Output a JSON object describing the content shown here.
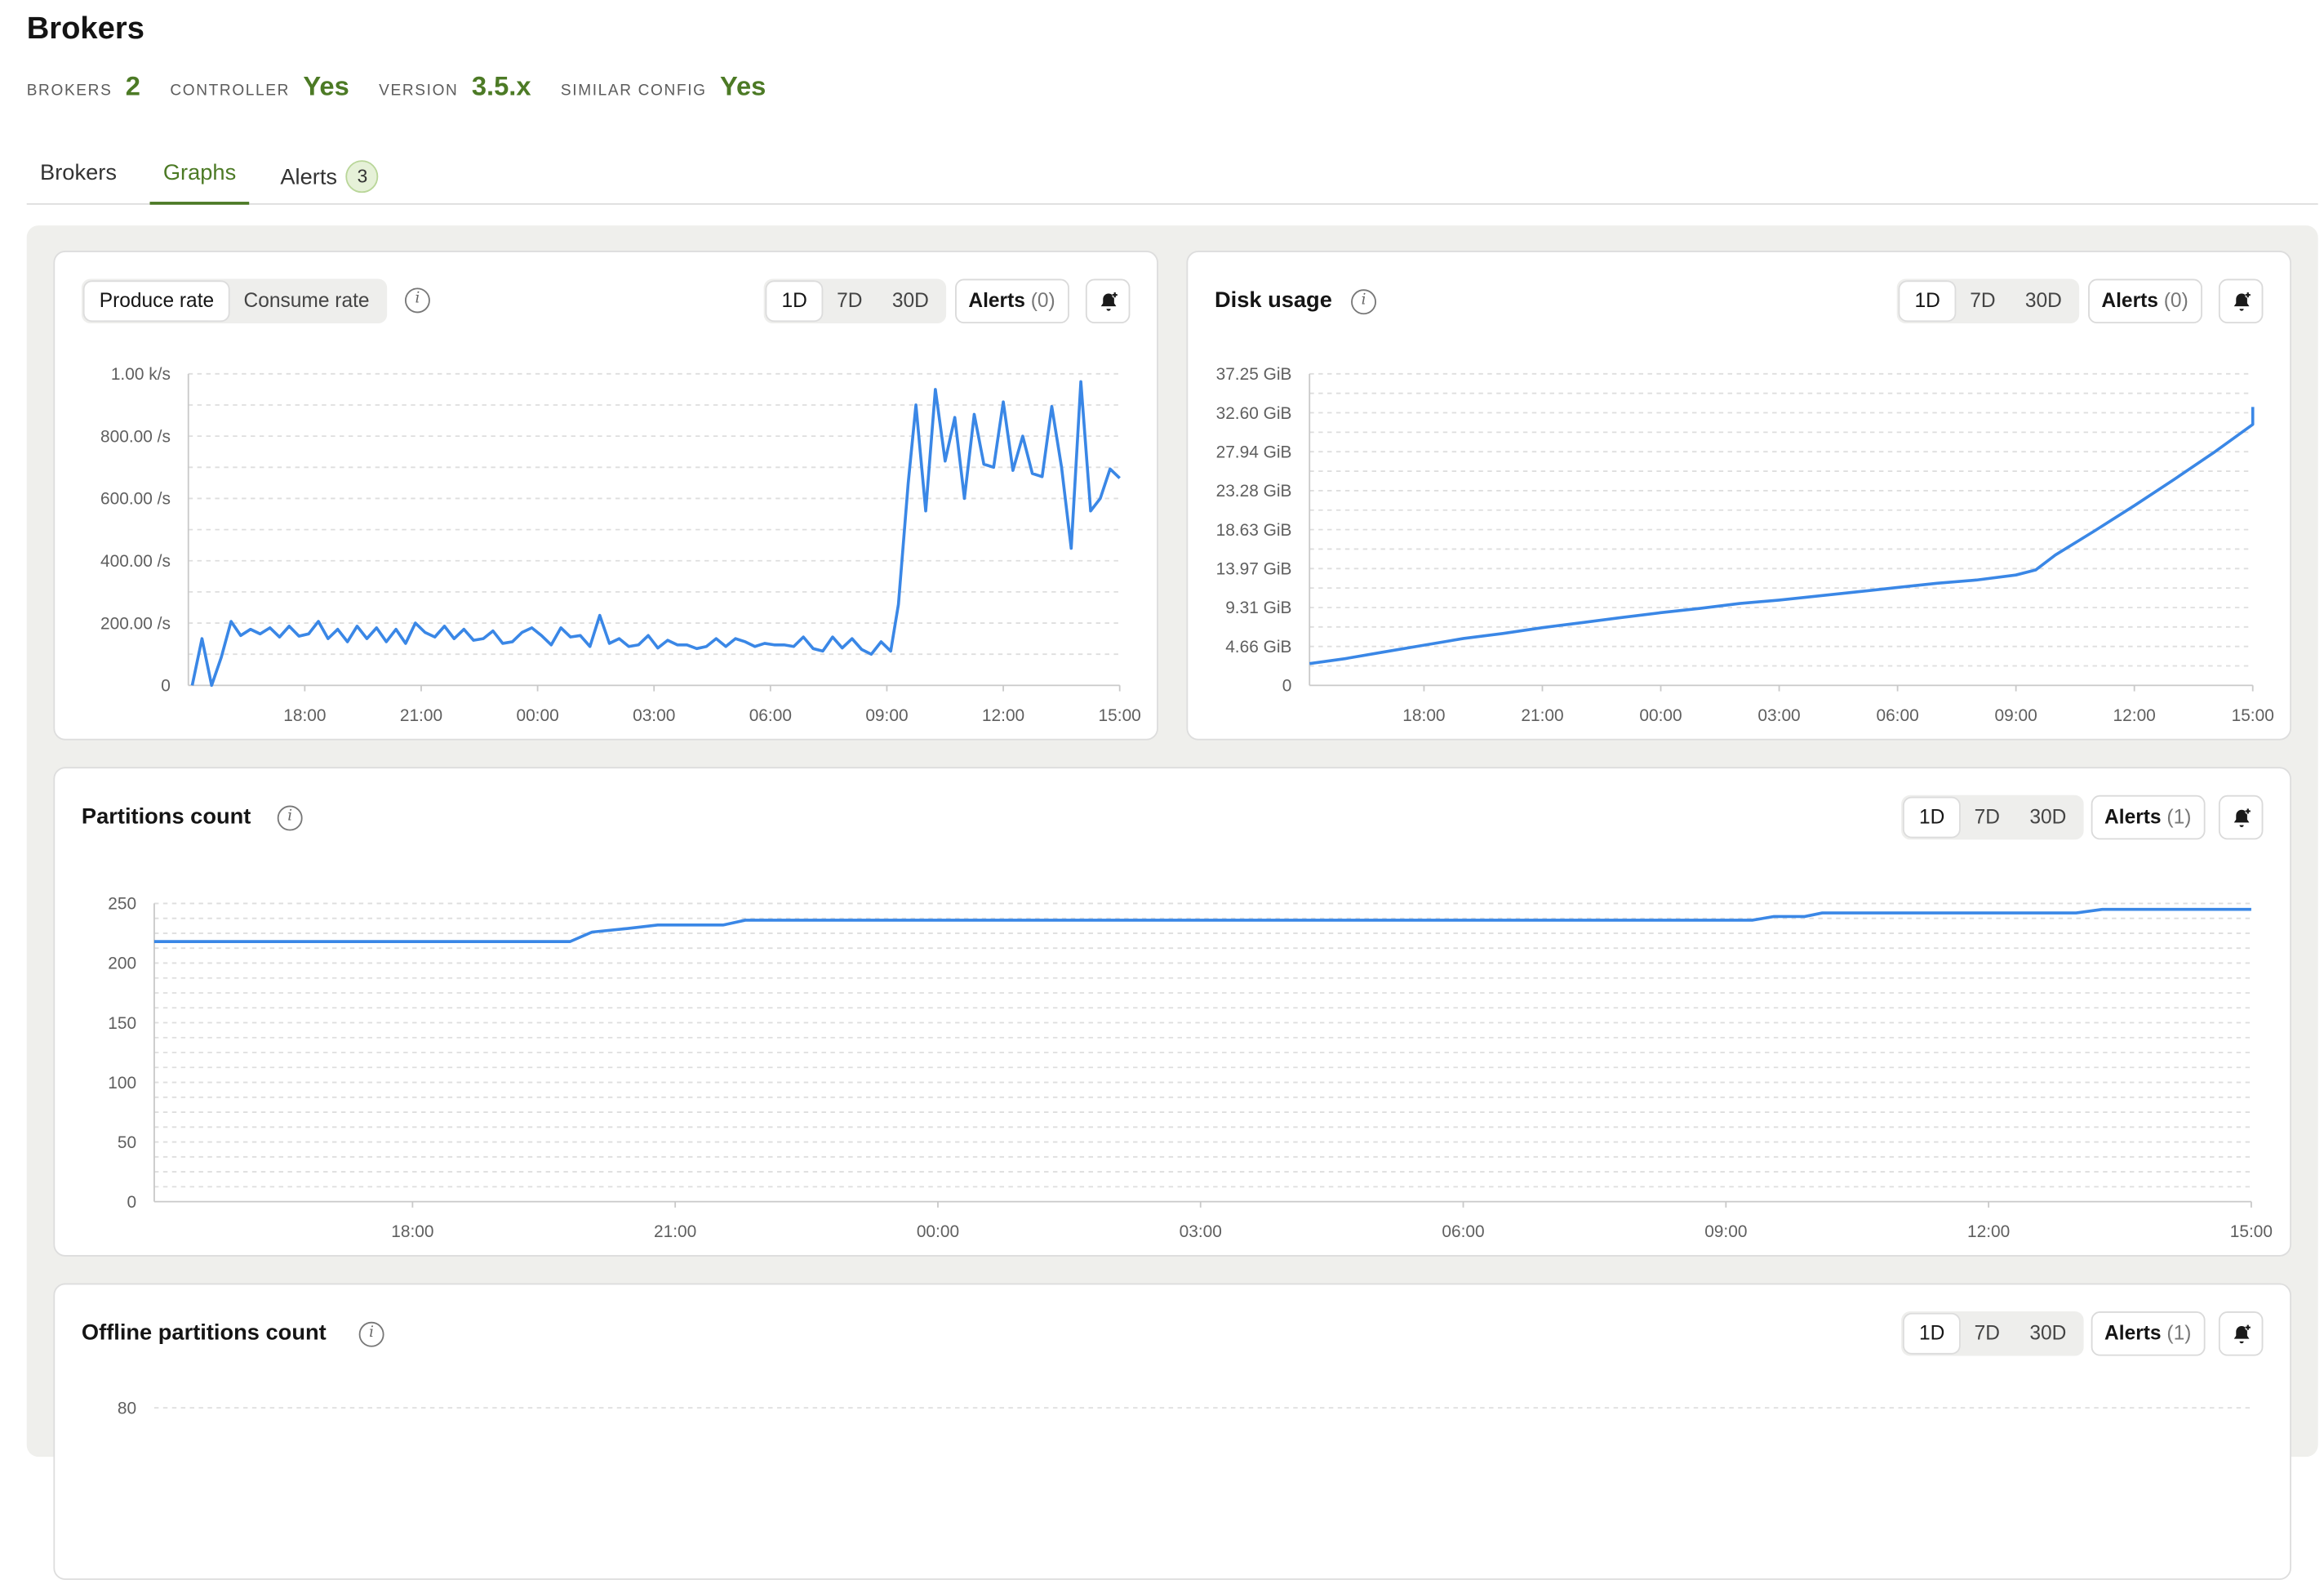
{
  "page": {
    "title": "Brokers"
  },
  "stats": [
    {
      "label": "BROKERS",
      "value": "2"
    },
    {
      "label": "CONTROLLER",
      "value": "Yes"
    },
    {
      "label": "VERSION",
      "value": "3.5.x"
    },
    {
      "label": "SIMILAR CONFIG",
      "value": "Yes"
    }
  ],
  "tabs": {
    "brokers": "Brokers",
    "graphs": "Graphs",
    "alerts": "Alerts",
    "alerts_count": "3",
    "active": "Graphs"
  },
  "colors": {
    "accent": "#4c7a25",
    "series": "#3a87e6",
    "badge_bg": "#e6f1d8"
  },
  "controls": {
    "produce_rate": "Produce rate",
    "consume_rate": "Consume rate",
    "range_1d": "1D",
    "range_7d": "7D",
    "range_30d": "30D",
    "alerts_label": "Alerts"
  },
  "icons": {
    "info": "info-icon",
    "bell": "bell-plus-icon"
  },
  "cards": {
    "rate": {
      "alerts_count": "(0)",
      "selected_range": "1D",
      "selected_metric": "Produce rate"
    },
    "disk": {
      "title": "Disk usage",
      "alerts_count": "(0)",
      "selected_range": "1D"
    },
    "partitions": {
      "title": "Partitions count",
      "alerts_count": "(1)",
      "selected_range": "1D"
    },
    "offline": {
      "title": "Offline partitions count",
      "alerts_count": "(1)",
      "selected_range": "1D"
    }
  },
  "chart_data": [
    {
      "id": "rate",
      "type": "line",
      "x_ticks": [
        "18:00",
        "21:00",
        "00:00",
        "03:00",
        "06:00",
        "09:00",
        "12:00",
        "15:00"
      ],
      "y_ticks": [
        "0",
        "200.00 /s",
        "400.00 /s",
        "600.00 /s",
        "800.00 /s",
        "1.00 k/s"
      ],
      "ylim": [
        0,
        1000
      ],
      "xlim": [
        15.1,
        39.0
      ],
      "grid": true,
      "series": [
        {
          "points": [
            [
              15.1,
              0
            ],
            [
              15.35,
              150
            ],
            [
              15.6,
              0
            ],
            [
              15.85,
              90
            ],
            [
              16.1,
              205
            ],
            [
              16.35,
              160
            ],
            [
              16.6,
              180
            ],
            [
              16.85,
              165
            ],
            [
              17.1,
              185
            ],
            [
              17.35,
              155
            ],
            [
              17.6,
              190
            ],
            [
              17.85,
              158
            ],
            [
              18.1,
              165
            ],
            [
              18.35,
              205
            ],
            [
              18.6,
              150
            ],
            [
              18.85,
              180
            ],
            [
              19.1,
              140
            ],
            [
              19.35,
              190
            ],
            [
              19.6,
              150
            ],
            [
              19.85,
              185
            ],
            [
              20.1,
              140
            ],
            [
              20.35,
              180
            ],
            [
              20.6,
              135
            ],
            [
              20.85,
              200
            ],
            [
              21.1,
              170
            ],
            [
              21.35,
              155
            ],
            [
              21.6,
              190
            ],
            [
              21.85,
              150
            ],
            [
              22.1,
              180
            ],
            [
              22.35,
              145
            ],
            [
              22.6,
              150
            ],
            [
              22.85,
              175
            ],
            [
              23.1,
              135
            ],
            [
              23.35,
              140
            ],
            [
              23.6,
              170
            ],
            [
              23.85,
              185
            ],
            [
              24.1,
              160
            ],
            [
              24.35,
              130
            ],
            [
              24.6,
              185
            ],
            [
              24.85,
              155
            ],
            [
              25.1,
              160
            ],
            [
              25.35,
              125
            ],
            [
              25.6,
              225
            ],
            [
              25.85,
              135
            ],
            [
              26.1,
              150
            ],
            [
              26.35,
              125
            ],
            [
              26.6,
              130
            ],
            [
              26.85,
              160
            ],
            [
              27.1,
              120
            ],
            [
              27.35,
              145
            ],
            [
              27.6,
              130
            ],
            [
              27.85,
              130
            ],
            [
              28.1,
              118
            ],
            [
              28.35,
              125
            ],
            [
              28.6,
              150
            ],
            [
              28.85,
              125
            ],
            [
              29.1,
              150
            ],
            [
              29.35,
              140
            ],
            [
              29.6,
              125
            ],
            [
              29.85,
              135
            ],
            [
              30.1,
              130
            ],
            [
              30.35,
              130
            ],
            [
              30.6,
              125
            ],
            [
              30.85,
              155
            ],
            [
              31.1,
              118
            ],
            [
              31.35,
              110
            ],
            [
              31.6,
              155
            ],
            [
              31.85,
              120
            ],
            [
              32.1,
              150
            ],
            [
              32.35,
              115
            ],
            [
              32.6,
              100
            ],
            [
              32.85,
              140
            ],
            [
              33.1,
              110
            ],
            [
              33.3,
              260
            ],
            [
              33.55,
              650
            ],
            [
              33.75,
              900
            ],
            [
              34.0,
              560
            ],
            [
              34.25,
              950
            ],
            [
              34.5,
              720
            ],
            [
              34.75,
              860
            ],
            [
              35.0,
              600
            ],
            [
              35.25,
              870
            ],
            [
              35.5,
              710
            ],
            [
              35.75,
              700
            ],
            [
              36.0,
              910
            ],
            [
              36.25,
              690
            ],
            [
              36.5,
              800
            ],
            [
              36.75,
              680
            ],
            [
              37.0,
              670
            ],
            [
              37.25,
              895
            ],
            [
              37.5,
              700
            ],
            [
              37.75,
              440
            ],
            [
              38.0,
              975
            ],
            [
              38.25,
              560
            ],
            [
              38.5,
              600
            ],
            [
              38.75,
              695
            ],
            [
              39.0,
              665
            ]
          ]
        }
      ]
    },
    {
      "id": "disk",
      "type": "line",
      "x_ticks": [
        "18:00",
        "21:00",
        "00:00",
        "03:00",
        "06:00",
        "09:00",
        "12:00",
        "15:00"
      ],
      "y_ticks": [
        "0",
        "4.66 GiB",
        "9.31 GiB",
        "13.97 GiB",
        "18.63 GiB",
        "23.28 GiB",
        "27.94 GiB",
        "32.60 GiB",
        "37.25 GiB"
      ],
      "ylim": [
        0,
        37.25
      ],
      "xlim": [
        15.1,
        39.0
      ],
      "grid": true,
      "series": [
        {
          "points": [
            [
              15.1,
              2.6
            ],
            [
              16.0,
              3.2
            ],
            [
              17.0,
              4.0
            ],
            [
              18.0,
              4.8
            ],
            [
              19.0,
              5.6
            ],
            [
              20.0,
              6.2
            ],
            [
              21.0,
              6.9
            ],
            [
              22.0,
              7.5
            ],
            [
              23.0,
              8.1
            ],
            [
              24.0,
              8.7
            ],
            [
              25.0,
              9.2
            ],
            [
              26.0,
              9.8
            ],
            [
              27.0,
              10.2
            ],
            [
              28.0,
              10.7
            ],
            [
              29.0,
              11.2
            ],
            [
              30.0,
              11.7
            ],
            [
              31.0,
              12.2
            ],
            [
              32.0,
              12.6
            ],
            [
              33.0,
              13.2
            ],
            [
              33.5,
              13.8
            ],
            [
              34.0,
              15.6
            ],
            [
              35.0,
              18.5
            ],
            [
              36.0,
              21.5
            ],
            [
              37.0,
              24.6
            ],
            [
              38.0,
              27.8
            ],
            [
              39.0,
              31.2
            ],
            [
              39.0,
              33.3
            ]
          ]
        }
      ]
    },
    {
      "id": "partitions",
      "type": "line",
      "x_ticks": [
        "18:00",
        "21:00",
        "00:00",
        "03:00",
        "06:00",
        "09:00",
        "12:00",
        "15:00"
      ],
      "y_ticks": [
        "0",
        "50",
        "100",
        "150",
        "200",
        "250"
      ],
      "ylim": [
        0,
        250
      ],
      "xlim": [
        15.05,
        39.0
      ],
      "grid": true,
      "series": [
        {
          "points": [
            [
              15.05,
              218
            ],
            [
              19.8,
              218
            ],
            [
              20.05,
              226
            ],
            [
              20.45,
              229
            ],
            [
              20.8,
              232
            ],
            [
              21.55,
              232
            ],
            [
              21.8,
              236
            ],
            [
              24.5,
              236
            ],
            [
              30.0,
              236
            ],
            [
              33.3,
              236
            ],
            [
              33.55,
              239
            ],
            [
              33.9,
              239
            ],
            [
              34.1,
              242
            ],
            [
              37.0,
              242
            ],
            [
              37.3,
              245
            ],
            [
              39.0,
              245
            ]
          ]
        }
      ]
    },
    {
      "id": "offline",
      "type": "line",
      "y_ticks": [
        "80"
      ],
      "grid": true,
      "series": []
    }
  ]
}
